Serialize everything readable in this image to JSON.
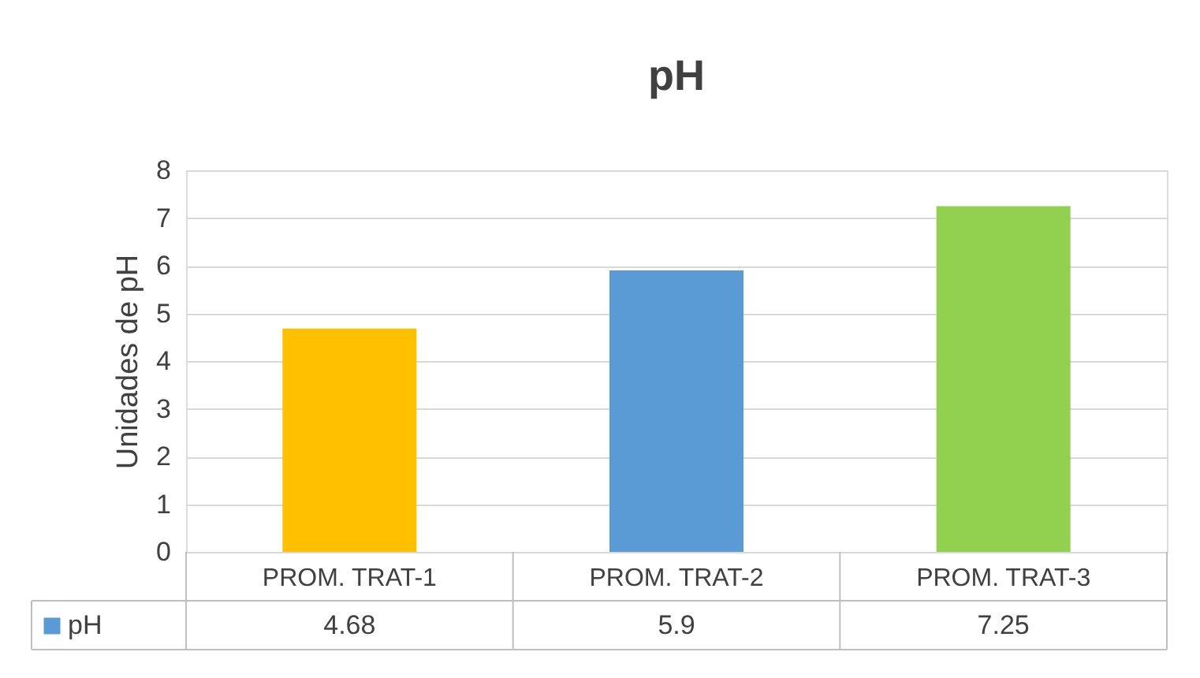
{
  "chart_data": {
    "type": "bar",
    "title": "pH",
    "ylabel": "Unidades de pH",
    "categories": [
      "PROM. TRAT-1",
      "PROM. TRAT-2",
      "PROM. TRAT-3"
    ],
    "series": [
      {
        "name": "pH",
        "color": "#5b9bd5",
        "colors": [
          "#ffc000",
          "#5b9bd5",
          "#92d050"
        ],
        "values": [
          4.68,
          5.9,
          7.25
        ]
      }
    ],
    "ylim": [
      0,
      8
    ],
    "yticks": [
      0,
      1,
      2,
      3,
      4,
      5,
      6,
      7,
      8
    ],
    "grid": "y",
    "data_labels": true,
    "legend": "bottom"
  }
}
